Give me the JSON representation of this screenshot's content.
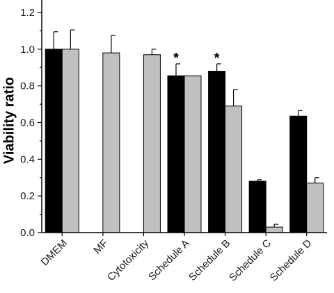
{
  "chart_data": {
    "type": "bar",
    "ylabel": "Viability ratio",
    "xlabel": "",
    "title": "",
    "ylim": [
      0,
      1.2
    ],
    "yticks": [
      "0.0",
      "0.2",
      "0.4",
      "0.6",
      "0.8",
      "1.0",
      "1.2"
    ],
    "ytick_values": [
      0,
      0.2,
      0.4,
      0.6,
      0.8,
      1.0,
      1.2
    ],
    "categories": [
      "DMEM",
      "MF",
      "Cytotoxicity",
      "Schedule A",
      "Schedule B",
      "Schedule C",
      "Schedule D"
    ],
    "series": [
      {
        "color": "#000000",
        "values": [
          1.0,
          null,
          null,
          0.855,
          0.88,
          0.28,
          0.635
        ],
        "errors": [
          0.095,
          null,
          null,
          0.065,
          0.04,
          0.008,
          0.03
        ]
      },
      {
        "color": "#c0c0c0",
        "values": [
          1.0,
          0.98,
          0.97,
          0.855,
          0.69,
          0.03,
          0.27
        ],
        "errors": [
          0.105,
          0.095,
          0.03,
          null,
          0.09,
          0.015,
          0.03
        ]
      }
    ],
    "annotations": [
      {
        "category": "Schedule A",
        "series": 0,
        "text": "*"
      },
      {
        "category": "Schedule B",
        "series": 0,
        "text": "*"
      }
    ],
    "grid": false,
    "legend": "none"
  }
}
